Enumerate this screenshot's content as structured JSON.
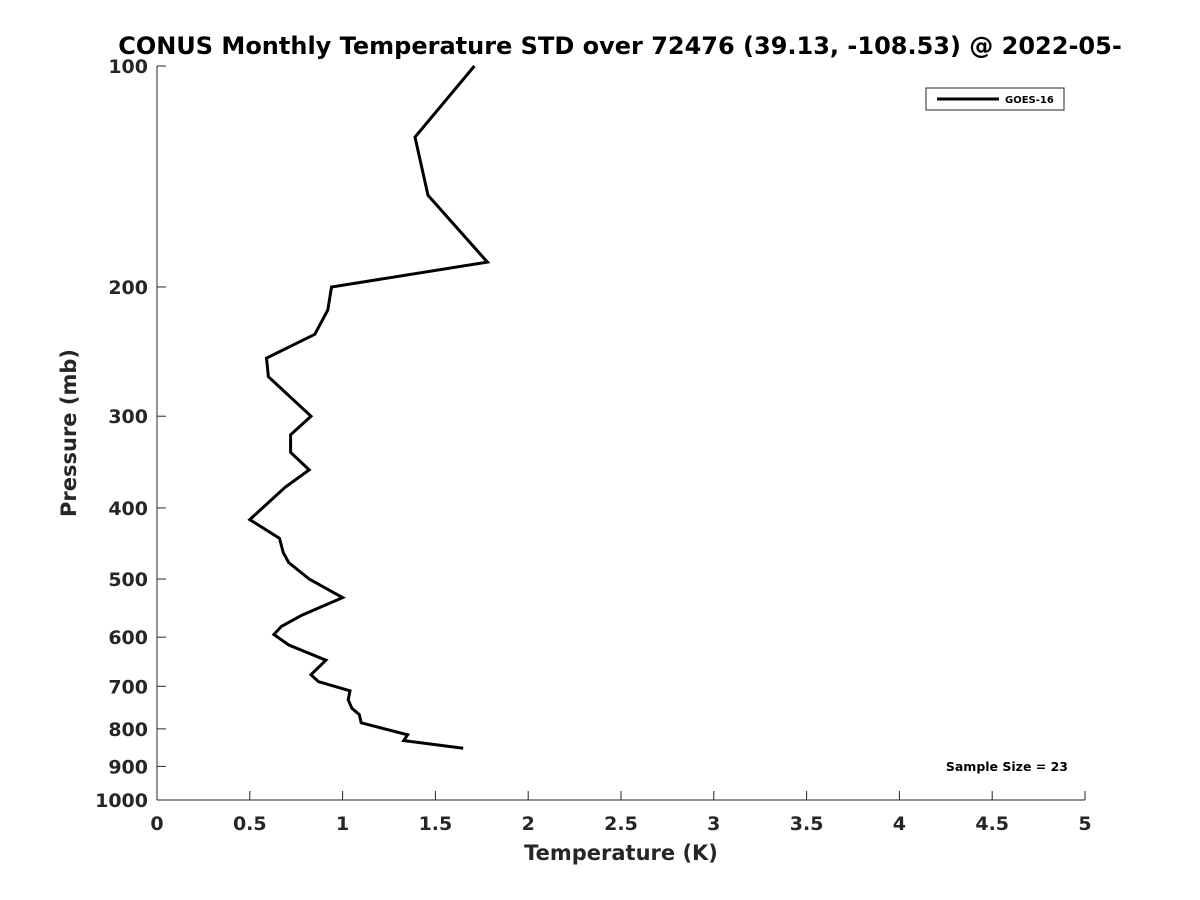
{
  "chart_data": {
    "type": "line",
    "title": "CONUS Monthly Temperature STD over 72476 (39.13, -108.53) @ 2022-05-",
    "xlabel": "Temperature (K)",
    "ylabel": "Pressure (mb)",
    "xlim": [
      0,
      5
    ],
    "ylim": [
      100,
      1000
    ],
    "y_scale": "log",
    "y_reversed": true,
    "x_ticks": [
      "0",
      "0.5",
      "1",
      "1.5",
      "2",
      "2.5",
      "3",
      "3.5",
      "4",
      "4.5",
      "5"
    ],
    "y_ticks": [
      "100",
      "200",
      "300",
      "400",
      "500",
      "600",
      "700",
      "800",
      "900",
      "1000"
    ],
    "grid": false,
    "legend_position": "top-right",
    "annotation": "Sample Size = 23",
    "series": [
      {
        "name": "GOES-16",
        "color": "#000000",
        "points": [
          {
            "x": 1.71,
            "p": 100
          },
          {
            "x": 1.39,
            "p": 125
          },
          {
            "x": 1.46,
            "p": 150
          },
          {
            "x": 1.78,
            "p": 185
          },
          {
            "x": 0.94,
            "p": 200
          },
          {
            "x": 0.92,
            "p": 215
          },
          {
            "x": 0.85,
            "p": 232
          },
          {
            "x": 0.59,
            "p": 250
          },
          {
            "x": 0.6,
            "p": 265
          },
          {
            "x": 0.83,
            "p": 300
          },
          {
            "x": 0.72,
            "p": 318
          },
          {
            "x": 0.72,
            "p": 336
          },
          {
            "x": 0.82,
            "p": 355
          },
          {
            "x": 0.69,
            "p": 375
          },
          {
            "x": 0.5,
            "p": 415
          },
          {
            "x": 0.66,
            "p": 440
          },
          {
            "x": 0.68,
            "p": 460
          },
          {
            "x": 0.71,
            "p": 475
          },
          {
            "x": 0.82,
            "p": 500
          },
          {
            "x": 1.0,
            "p": 530
          },
          {
            "x": 0.78,
            "p": 560
          },
          {
            "x": 0.67,
            "p": 580
          },
          {
            "x": 0.63,
            "p": 595
          },
          {
            "x": 0.71,
            "p": 615
          },
          {
            "x": 0.91,
            "p": 645
          },
          {
            "x": 0.83,
            "p": 675
          },
          {
            "x": 0.87,
            "p": 690
          },
          {
            "x": 1.04,
            "p": 710
          },
          {
            "x": 1.03,
            "p": 730
          },
          {
            "x": 1.05,
            "p": 750
          },
          {
            "x": 1.09,
            "p": 765
          },
          {
            "x": 1.1,
            "p": 785
          },
          {
            "x": 1.35,
            "p": 815
          },
          {
            "x": 1.33,
            "p": 830
          },
          {
            "x": 1.65,
            "p": 850
          }
        ]
      }
    ]
  }
}
